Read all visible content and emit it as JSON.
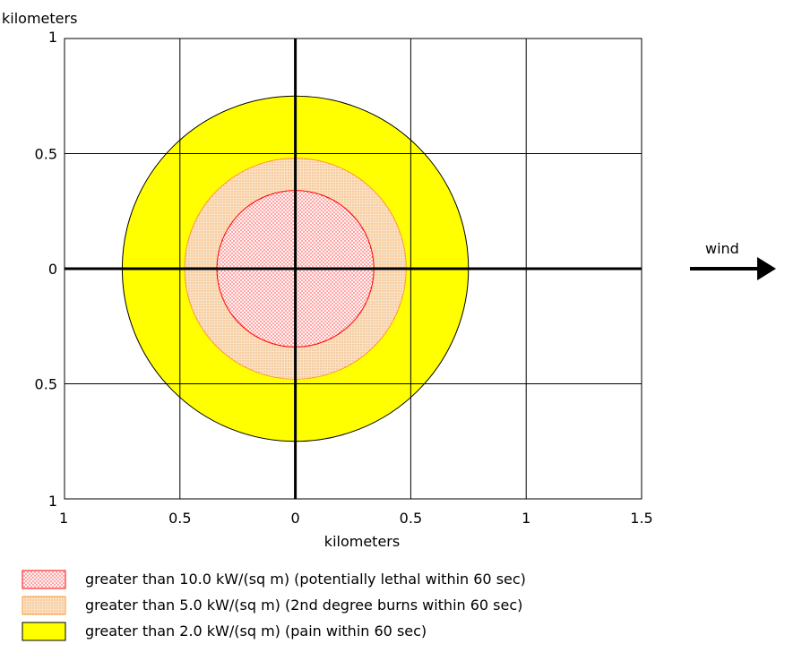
{
  "chart_data": {
    "type": "area",
    "ylabel": "kilometers",
    "xlabel": "kilometers",
    "xlim": [
      -1,
      1.5
    ],
    "ylim": [
      -1,
      1
    ],
    "x_ticks": [
      {
        "value": -1,
        "label": "1"
      },
      {
        "value": -0.5,
        "label": "0.5"
      },
      {
        "value": 0,
        "label": "0"
      },
      {
        "value": 0.5,
        "label": "0.5"
      },
      {
        "value": 1,
        "label": "1"
      },
      {
        "value": 1.5,
        "label": "1.5"
      }
    ],
    "y_ticks": [
      {
        "value": 1,
        "label": "1"
      },
      {
        "value": 0.5,
        "label": "0.5"
      },
      {
        "value": 0,
        "label": "0"
      },
      {
        "value": -0.5,
        "label": "0.5"
      },
      {
        "value": -1,
        "label": "1"
      }
    ],
    "grid": true,
    "zones": [
      {
        "label": "greater than 2.0 kW/(sq m) (pain within 60 sec)",
        "radius_km": 0.75,
        "fill": "#ffff00",
        "stroke": "#000000",
        "pattern": "solid"
      },
      {
        "label": "greater than 5.0 kW/(sq m) (2nd degree burns within 60 sec)",
        "radius_km": 0.48,
        "fill": "#f5c99a",
        "stroke": "#ff9933",
        "pattern": "dots-orange"
      },
      {
        "label": "greater than 10.0 kW/(sq m) (potentially lethal within 60 sec)",
        "radius_km": 0.34,
        "fill": "#fde3e3",
        "stroke": "#ff0000",
        "pattern": "dots-red"
      }
    ],
    "legend_order": [
      2,
      1,
      0
    ],
    "legend_position": "bottom",
    "annotation": {
      "text": "wind",
      "arrow_direction": "right",
      "icon": "arrow-right-icon"
    }
  }
}
